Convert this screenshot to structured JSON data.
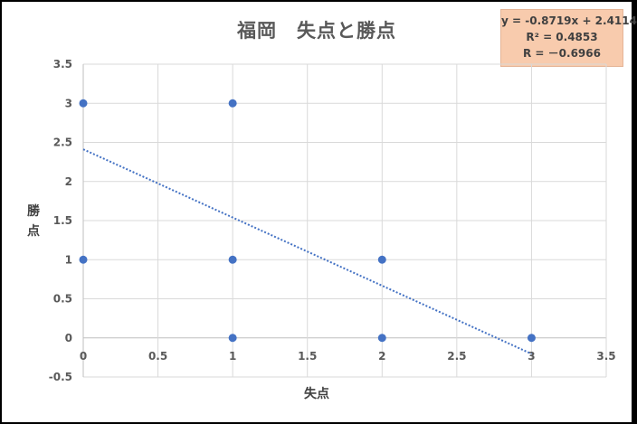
{
  "chart_data": {
    "type": "scatter",
    "title": "福岡　失点と勝点",
    "xlabel": "失点",
    "ylabel": "勝点",
    "xlim": [
      0,
      3.5
    ],
    "ylim": [
      -0.5,
      3.5
    ],
    "xticks": [
      "0",
      "0.5",
      "1",
      "1.5",
      "2",
      "2.5",
      "3",
      "3.5"
    ],
    "yticks": [
      "-0.5",
      "0",
      "0.5",
      "1",
      "1.5",
      "2",
      "2.5",
      "3",
      "3.5"
    ],
    "grid": true,
    "point_color": "#4472c4",
    "series": [
      {
        "points": [
          {
            "x": 0,
            "y": 3
          },
          {
            "x": 0,
            "y": 1
          },
          {
            "x": 1,
            "y": 3
          },
          {
            "x": 1,
            "y": 1
          },
          {
            "x": 1,
            "y": 0
          },
          {
            "x": 2,
            "y": 1
          },
          {
            "x": 2,
            "y": 0
          },
          {
            "x": 3,
            "y": 0
          }
        ]
      }
    ],
    "trendline": {
      "type": "linear",
      "slope": -0.8719,
      "intercept": 2.4114,
      "x_range": [
        0,
        3
      ],
      "style": "dotted",
      "color": "#4472c4"
    },
    "annotation": {
      "equation": "y = -0.8719x + 2.4114",
      "r_squared": "R² = 0.4853",
      "r": "R = －0.6966",
      "background": "#f8cbad"
    }
  }
}
